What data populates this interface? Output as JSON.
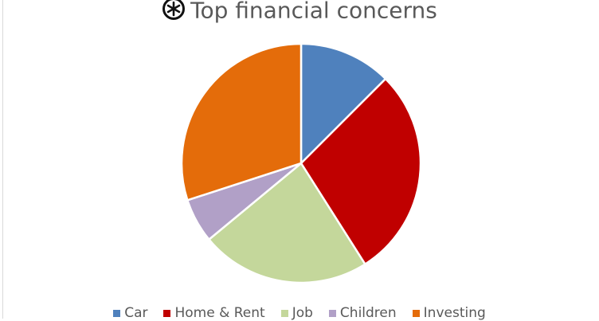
{
  "chart_data": {
    "type": "pie",
    "title": "Top financial concerns",
    "title_icon": "asterisk-circle-icon",
    "legend_position": "bottom",
    "categories": [
      "Car",
      "Home & Rent",
      "Job",
      "Children",
      "Investing"
    ],
    "values": [
      12.5,
      28.5,
      23,
      6,
      30
    ],
    "colors": [
      "#4f81bd",
      "#c00000",
      "#c4d79b",
      "#b1a0c7",
      "#e46c0a"
    ]
  }
}
